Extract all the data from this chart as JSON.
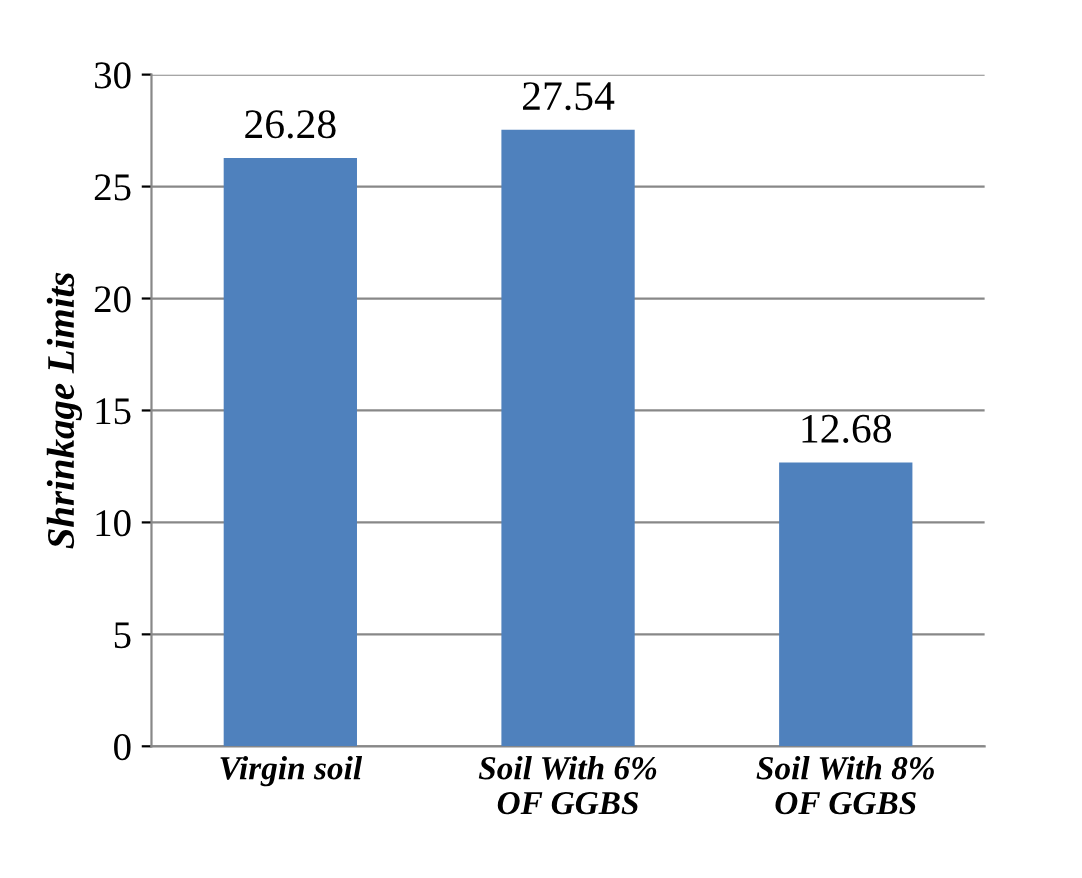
{
  "chart_data": {
    "type": "bar",
    "ylabel": "Shrinkage Limits",
    "categories": [
      "Virgin soil",
      "Soil With 6%\nOF GGBS",
      "Soil With 8%\nOF GGBS"
    ],
    "values": [
      26.28,
      27.54,
      12.68
    ],
    "color": "#4f81bd",
    "ylim": [
      0,
      30
    ],
    "yticks": [
      0,
      5,
      10,
      15,
      20,
      25,
      30
    ],
    "grid": "y",
    "data_labels": true,
    "legend": false
  }
}
